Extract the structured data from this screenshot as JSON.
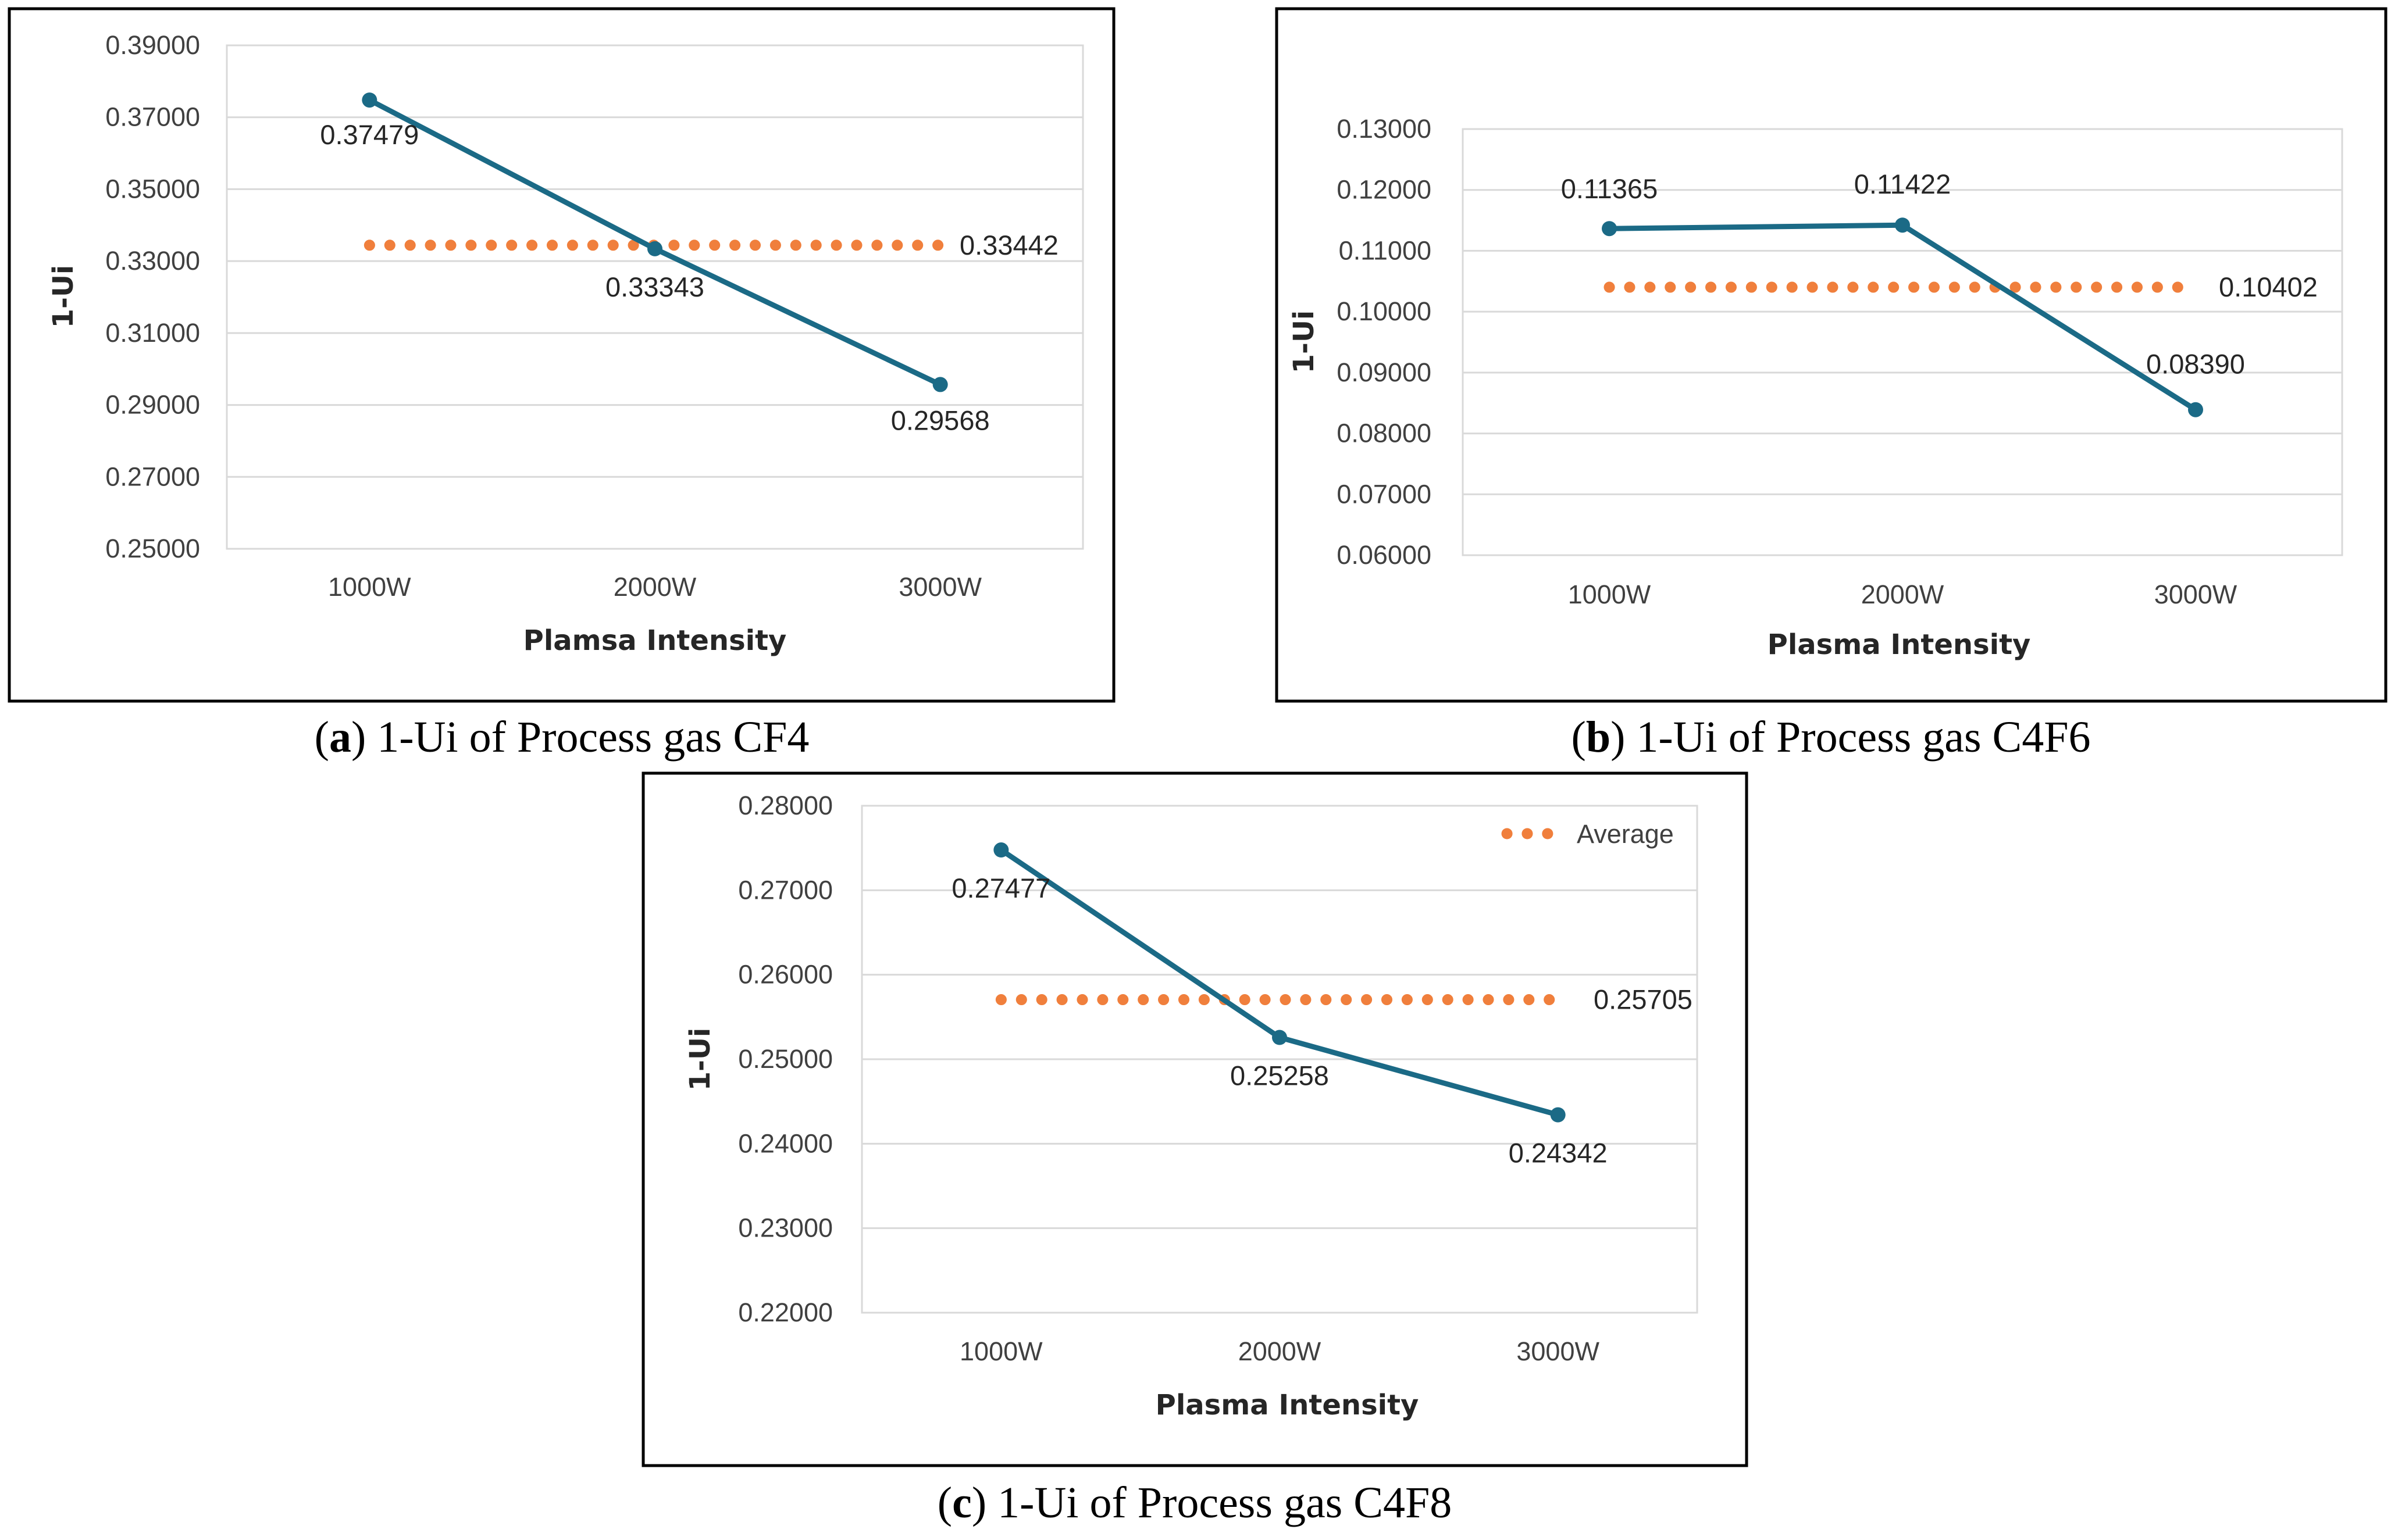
{
  "colors": {
    "series": "#1b6a86",
    "average": "#f07f3c",
    "grid": "#d9d9d9",
    "frame": "#000000"
  },
  "chart_data": [
    {
      "type": "line",
      "id": "a",
      "caption_letter": "a",
      "caption_text": "1-Ui of Process gas CF4",
      "categories": [
        "1000W",
        "2000W",
        "3000W"
      ],
      "series": [
        {
          "values": [
            0.37479,
            0.33343,
            0.29568
          ],
          "labels": [
            "0.37479",
            "0.33343",
            "0.29568"
          ]
        }
      ],
      "average": {
        "value": 0.33442,
        "label": "0.33442"
      },
      "xlabel": "Plamsa Intensity",
      "ylabel": "1-Ui",
      "ylim": [
        0.25,
        0.39
      ],
      "yticks": [
        "0.25000",
        "0.27000",
        "0.29000",
        "0.31000",
        "0.33000",
        "0.35000",
        "0.37000",
        "0.39000"
      ],
      "grid": true,
      "legend": null
    },
    {
      "type": "line",
      "id": "b",
      "caption_letter": "b",
      "caption_text": "1-Ui of Process gas C4F6",
      "categories": [
        "1000W",
        "2000W",
        "3000W"
      ],
      "series": [
        {
          "values": [
            0.11365,
            0.11422,
            0.0839
          ],
          "labels": [
            "0.11365",
            "0.11422",
            "0.08390"
          ]
        }
      ],
      "average": {
        "value": 0.10402,
        "label": "0.10402"
      },
      "xlabel": "Plasma Intensity",
      "ylabel": "1-Ui",
      "ylim": [
        0.06,
        0.13
      ],
      "yticks": [
        "0.06000",
        "0.07000",
        "0.08000",
        "0.09000",
        "0.10000",
        "0.11000",
        "0.12000",
        "0.13000"
      ],
      "grid": true,
      "legend": null
    },
    {
      "type": "line",
      "id": "c",
      "caption_letter": "c",
      "caption_text": "1-Ui of Process gas C4F8",
      "categories": [
        "1000W",
        "2000W",
        "3000W"
      ],
      "series": [
        {
          "values": [
            0.27477,
            0.25258,
            0.24342
          ],
          "labels": [
            "0.27477",
            "0.25258",
            "0.24342"
          ]
        }
      ],
      "average": {
        "value": 0.25705,
        "label": "0.25705"
      },
      "xlabel": "Plasma Intensity",
      "ylabel": "1-Ui",
      "ylim": [
        0.22,
        0.28
      ],
      "yticks": [
        "0.22000",
        "0.23000",
        "0.24000",
        "0.25000",
        "0.26000",
        "0.27000",
        "0.28000"
      ],
      "grid": true,
      "legend": {
        "position": "top-right",
        "average_label": "Average"
      }
    }
  ]
}
